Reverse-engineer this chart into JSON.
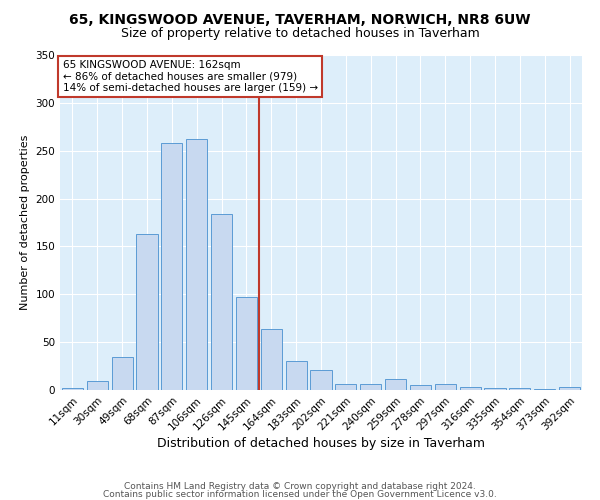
{
  "title1": "65, KINGSWOOD AVENUE, TAVERHAM, NORWICH, NR8 6UW",
  "title2": "Size of property relative to detached houses in Taverham",
  "xlabel": "Distribution of detached houses by size in Taverham",
  "ylabel": "Number of detached properties",
  "categories": [
    "11sqm",
    "30sqm",
    "49sqm",
    "68sqm",
    "87sqm",
    "106sqm",
    "126sqm",
    "145sqm",
    "164sqm",
    "183sqm",
    "202sqm",
    "221sqm",
    "240sqm",
    "259sqm",
    "278sqm",
    "297sqm",
    "316sqm",
    "335sqm",
    "354sqm",
    "373sqm",
    "392sqm"
  ],
  "values": [
    2,
    9,
    35,
    163,
    258,
    262,
    184,
    97,
    64,
    30,
    21,
    6,
    6,
    11,
    5,
    6,
    3,
    2,
    2,
    1,
    3
  ],
  "bar_color": "#c8d9f0",
  "bar_edge_color": "#5b9bd5",
  "vline_x_index": 8,
  "vline_color": "#c0392b",
  "annotation_text": "65 KINGSWOOD AVENUE: 162sqm\n← 86% of detached houses are smaller (979)\n14% of semi-detached houses are larger (159) →",
  "annotation_box_color": "white",
  "annotation_box_edge": "#c0392b",
  "footer1": "Contains HM Land Registry data © Crown copyright and database right 2024.",
  "footer2": "Contains public sector information licensed under the Open Government Licence v3.0.",
  "background_color": "#ddeefa",
  "ylim": [
    0,
    350
  ],
  "title1_fontsize": 10,
  "title2_fontsize": 9,
  "xlabel_fontsize": 9,
  "ylabel_fontsize": 8,
  "tick_fontsize": 7.5,
  "footer_fontsize": 6.5,
  "annotation_fontsize": 7.5
}
